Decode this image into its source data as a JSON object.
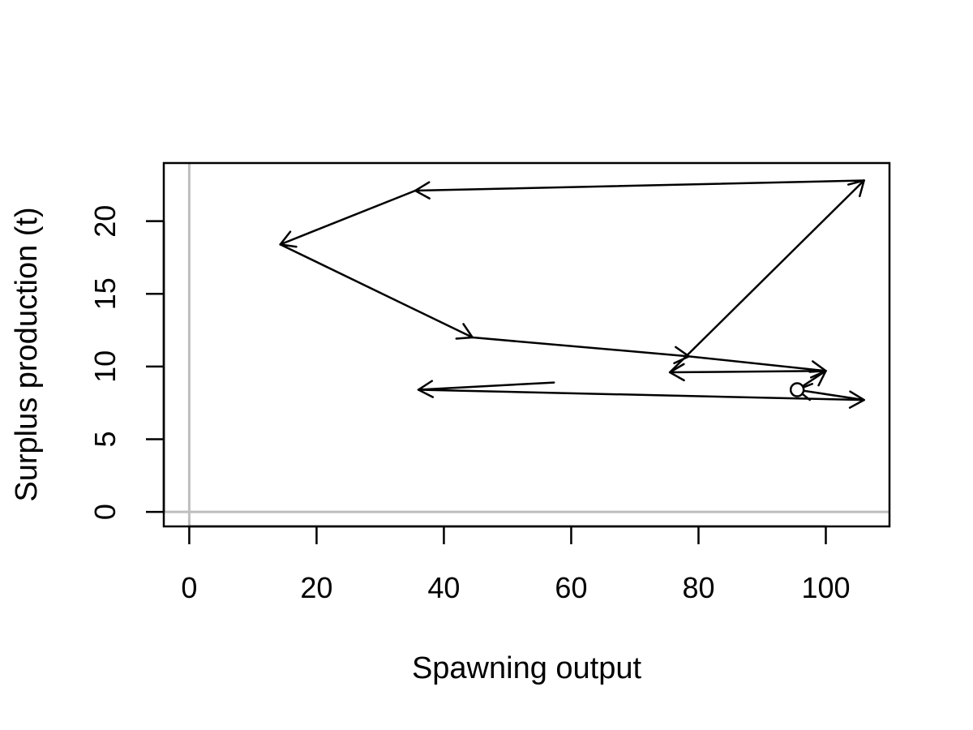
{
  "chart_data": {
    "type": "line",
    "title": "",
    "xlabel": "Spawning output",
    "ylabel": "Surplus production (t)",
    "xlim": [
      -4,
      110
    ],
    "ylim": [
      -1,
      24
    ],
    "x_ticks": [
      0,
      20,
      40,
      60,
      80,
      100
    ],
    "y_ticks": [
      0,
      5,
      10,
      15,
      20
    ],
    "x_tick_labels": [
      "0",
      "20",
      "40",
      "60",
      "80",
      "100"
    ],
    "y_tick_labels": [
      "0",
      "5",
      "10",
      "15",
      "20"
    ],
    "grid": false,
    "reference_lines": {
      "x": 0,
      "y": 0,
      "color": "#bebebe"
    },
    "line_color": "#000000",
    "arrows": true,
    "start_marker": "open-circle",
    "series": [
      {
        "points": [
          {
            "x": 57.3,
            "y": 8.9
          },
          {
            "x": 36.0,
            "y": 8.4
          },
          {
            "x": 106.0,
            "y": 7.7
          },
          {
            "x": 95.5,
            "y": 8.4
          },
          {
            "x": 100.0,
            "y": 9.7
          },
          {
            "x": 75.5,
            "y": 9.6
          },
          {
            "x": 106.0,
            "y": 22.8
          },
          {
            "x": 35.5,
            "y": 22.1
          },
          {
            "x": 14.3,
            "y": 18.4
          },
          {
            "x": 44.5,
            "y": 12.0
          },
          {
            "x": 78.5,
            "y": 10.7
          },
          {
            "x": 100.0,
            "y": 9.7
          }
        ]
      }
    ],
    "marked_point": {
      "x": 95.5,
      "y": 8.4
    }
  }
}
